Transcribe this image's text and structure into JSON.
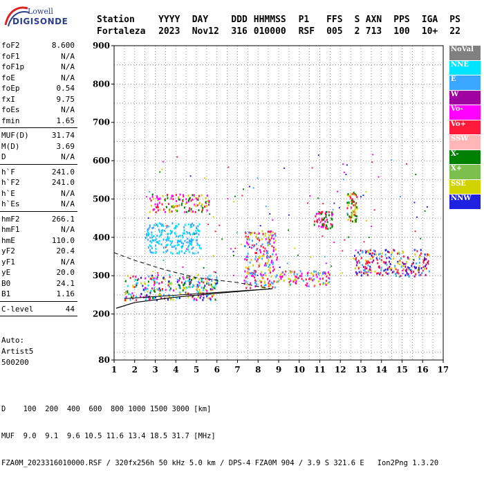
{
  "logo": {
    "line1": "Lowell",
    "line2": "DIGISONDE"
  },
  "header": {
    "labels": [
      "Station",
      "YYYY",
      "DAY",
      "DDD",
      "HHMMSS",
      "P1",
      "FFS",
      "S",
      "AXN",
      "PPS",
      "IGA",
      "PS"
    ],
    "values": [
      "Fortaleza",
      "2023",
      "Nov12",
      "316",
      "010000",
      "RSF",
      "005",
      "2",
      "713",
      "100",
      "10+",
      "22"
    ]
  },
  "params": {
    "group1": [
      {
        "name": "foF2",
        "value": "8.600"
      },
      {
        "name": "foF1",
        "value": "N/A"
      },
      {
        "name": "foF1p",
        "value": "N/A"
      },
      {
        "name": "foE",
        "value": "N/A"
      },
      {
        "name": "foEp",
        "value": "0.54"
      },
      {
        "name": "fxI",
        "value": "9.75"
      },
      {
        "name": "foEs",
        "value": "N/A"
      },
      {
        "name": "fmin",
        "value": "1.65"
      }
    ],
    "group2": [
      {
        "name": "MUF(D)",
        "value": "31.74"
      },
      {
        "name": "M(D)",
        "value": "3.69"
      },
      {
        "name": "D",
        "value": "N/A"
      }
    ],
    "group3": [
      {
        "name": "h`F",
        "value": "241.0"
      },
      {
        "name": "h`F2",
        "value": "241.0"
      },
      {
        "name": "h`E",
        "value": "N/A"
      },
      {
        "name": "h`Es",
        "value": "N/A"
      }
    ],
    "group4": [
      {
        "name": "hmF2",
        "value": "266.1"
      },
      {
        "name": "hmF1",
        "value": "N/A"
      },
      {
        "name": "hmE",
        "value": "110.0"
      },
      {
        "name": "yF2",
        "value": "20.4"
      },
      {
        "name": "yF1",
        "value": "N/A"
      },
      {
        "name": "yE",
        "value": "20.0"
      },
      {
        "name": "B0",
        "value": "24.1"
      },
      {
        "name": "B1",
        "value": "1.16"
      }
    ],
    "group5": [
      {
        "name": "C-level",
        "value": "44"
      }
    ]
  },
  "auto": {
    "line1": "Auto:",
    "line2": "Artist5",
    "line3": "500200"
  },
  "legend": [
    {
      "label": "NoVal",
      "color": "#808080"
    },
    {
      "label": "NNE",
      "color": "#00e5ff"
    },
    {
      "label": "E",
      "color": "#3aa6ff"
    },
    {
      "label": "W",
      "color": "#a000a0"
    },
    {
      "label": "Vo-",
      "color": "#ff00ff"
    },
    {
      "label": "Vo+",
      "color": "#ff1a3c"
    },
    {
      "label": "SSW",
      "color": "#ffb6b6"
    },
    {
      "label": "X-",
      "color": "#008000"
    },
    {
      "label": "X+",
      "color": "#7cbf4e"
    },
    {
      "label": "SSE",
      "color": "#d2d200"
    },
    {
      "label": "NNW",
      "color": "#2020e0"
    }
  ],
  "footer": {
    "line1": "D    100  200  400  600  800 1000 1500 3000 [km]",
    "line2": "MUF  9.0  9.1  9.6 10.5 11.6 13.4 18.5 31.7 [MHz]",
    "line3": "FZA0M_2023316010000.RSF / 320fx256h 50 kHz 5.0 km / DPS-4 FZA0M 904 / 3.9 S 321.6 E   Ion2Png 1.3.20"
  },
  "chart_data": {
    "type": "scatter",
    "title": "",
    "xlabel": "",
    "ylabel": "",
    "xlim": [
      1,
      17
    ],
    "ylim": [
      80,
      900
    ],
    "x_ticks": [
      1,
      2,
      3,
      4,
      5,
      6,
      7,
      8,
      9,
      10,
      11,
      12,
      13,
      14,
      15,
      16,
      17
    ],
    "y_ticks": [
      80,
      200,
      300,
      400,
      500,
      600,
      700,
      800,
      900
    ],
    "grid": true,
    "legend_placement": "right",
    "echo_clusters": [
      {
        "x_range": [
          1.5,
          6.0
        ],
        "y_range": [
          238,
          305
        ],
        "colors": [
          "#ff1a3c",
          "#ff00ff",
          "#008000",
          "#d2d200",
          "#2020e0",
          "#3aa6ff",
          "#00e5ff"
        ]
      },
      {
        "x_range": [
          2.5,
          5.2
        ],
        "y_range": [
          360,
          440
        ],
        "colors": [
          "#3aa6ff",
          "#00e5ff"
        ]
      },
      {
        "x_range": [
          2.7,
          5.6
        ],
        "y_range": [
          468,
          515
        ],
        "colors": [
          "#d2d200",
          "#ff00ff",
          "#008000",
          "#ff1a3c"
        ]
      },
      {
        "x_range": [
          7.3,
          8.9
        ],
        "y_range": [
          270,
          420
        ],
        "colors": [
          "#ff1a3c",
          "#ff00ff",
          "#d2d200",
          "#3aa6ff"
        ]
      },
      {
        "x_range": [
          8.8,
          11.5
        ],
        "y_range": [
          275,
          315
        ],
        "colors": [
          "#ff1a3c",
          "#ff00ff",
          "#d2d200",
          "#3aa6ff"
        ]
      },
      {
        "x_range": [
          10.7,
          11.6
        ],
        "y_range": [
          425,
          470
        ],
        "colors": [
          "#ff1a3c",
          "#008000",
          "#ff00ff"
        ]
      },
      {
        "x_range": [
          12.3,
          12.8
        ],
        "y_range": [
          440,
          520
        ],
        "colors": [
          "#008000",
          "#ff1a3c",
          "#d2d200"
        ]
      },
      {
        "x_range": [
          12.6,
          16.3
        ],
        "y_range": [
          300,
          370
        ],
        "colors": [
          "#2020e0",
          "#3aa6ff",
          "#a000a0",
          "#d2d200",
          "#ff1a3c"
        ]
      }
    ],
    "profile_curve": [
      [
        1.1,
        215
      ],
      [
        2.0,
        230
      ],
      [
        4.0,
        244
      ],
      [
        6.0,
        254
      ],
      [
        8.0,
        263
      ],
      [
        8.7,
        266
      ]
    ],
    "profile_upper_dashed": [
      [
        1.0,
        360
      ],
      [
        2.0,
        340
      ],
      [
        3.5,
        315
      ],
      [
        5.0,
        295
      ],
      [
        7.0,
        282
      ],
      [
        8.6,
        266
      ]
    ]
  }
}
